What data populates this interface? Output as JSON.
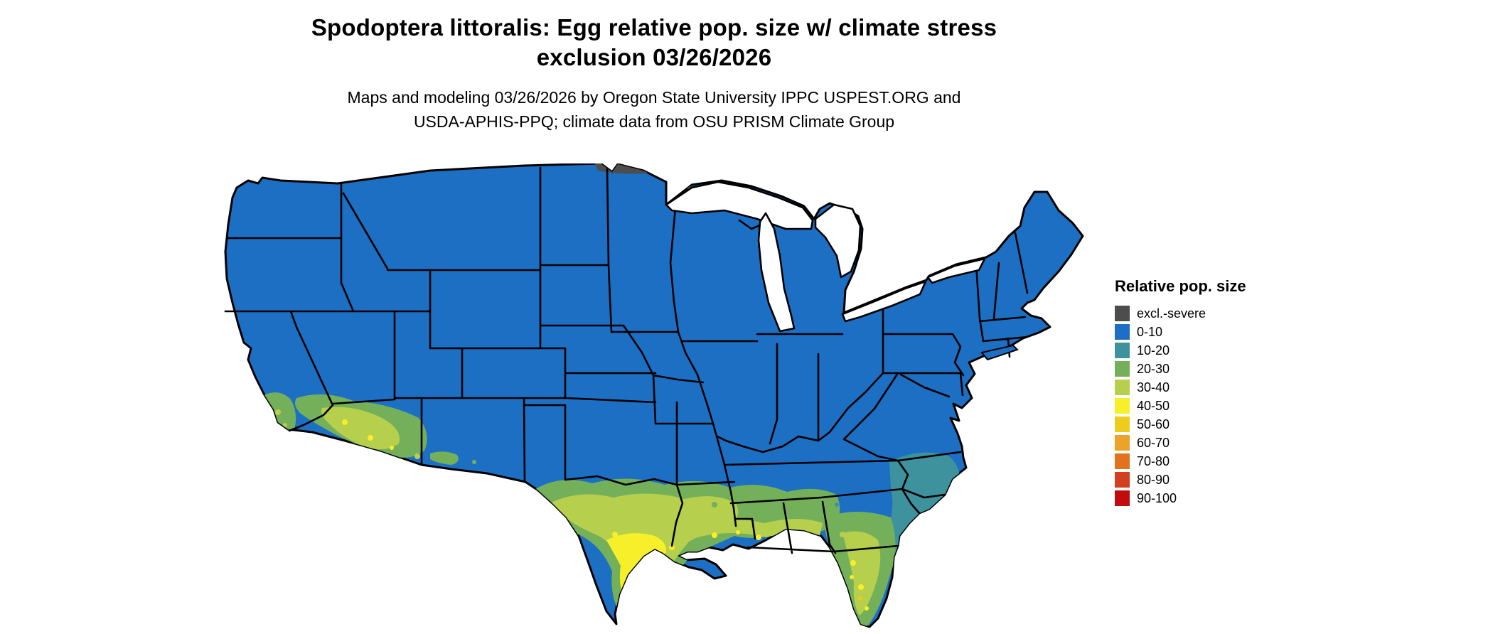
{
  "header": {
    "title_line1": "Spodoptera littoralis: Egg relative pop. size w/ climate stress",
    "title_line2": "exclusion 03/26/2026",
    "subtitle_line1": "Maps and modeling 03/26/2026 by Oregon State University IPPC USPEST.ORG and",
    "subtitle_line2": "USDA-APHIS-PPQ; climate data from OSU PRISM Climate Group"
  },
  "legend": {
    "title": "Relative pop. size",
    "items": [
      {
        "label": "excl.-severe",
        "color": "#4d4d4d"
      },
      {
        "label": "0-10",
        "color": "#1d6fc4"
      },
      {
        "label": "10-20",
        "color": "#3d929e"
      },
      {
        "label": "20-30",
        "color": "#74b05a"
      },
      {
        "label": "30-40",
        "color": "#b6cf4d"
      },
      {
        "label": "40-50",
        "color": "#f7ef2a"
      },
      {
        "label": "50-60",
        "color": "#eccc1d"
      },
      {
        "label": "60-70",
        "color": "#eca32a"
      },
      {
        "label": "70-80",
        "color": "#e0741c"
      },
      {
        "label": "80-90",
        "color": "#d23f1e"
      },
      {
        "label": "90-100",
        "color": "#c00c0c"
      }
    ]
  },
  "map": {
    "water_color": "#ffffff",
    "state_border_color": "#000000"
  }
}
